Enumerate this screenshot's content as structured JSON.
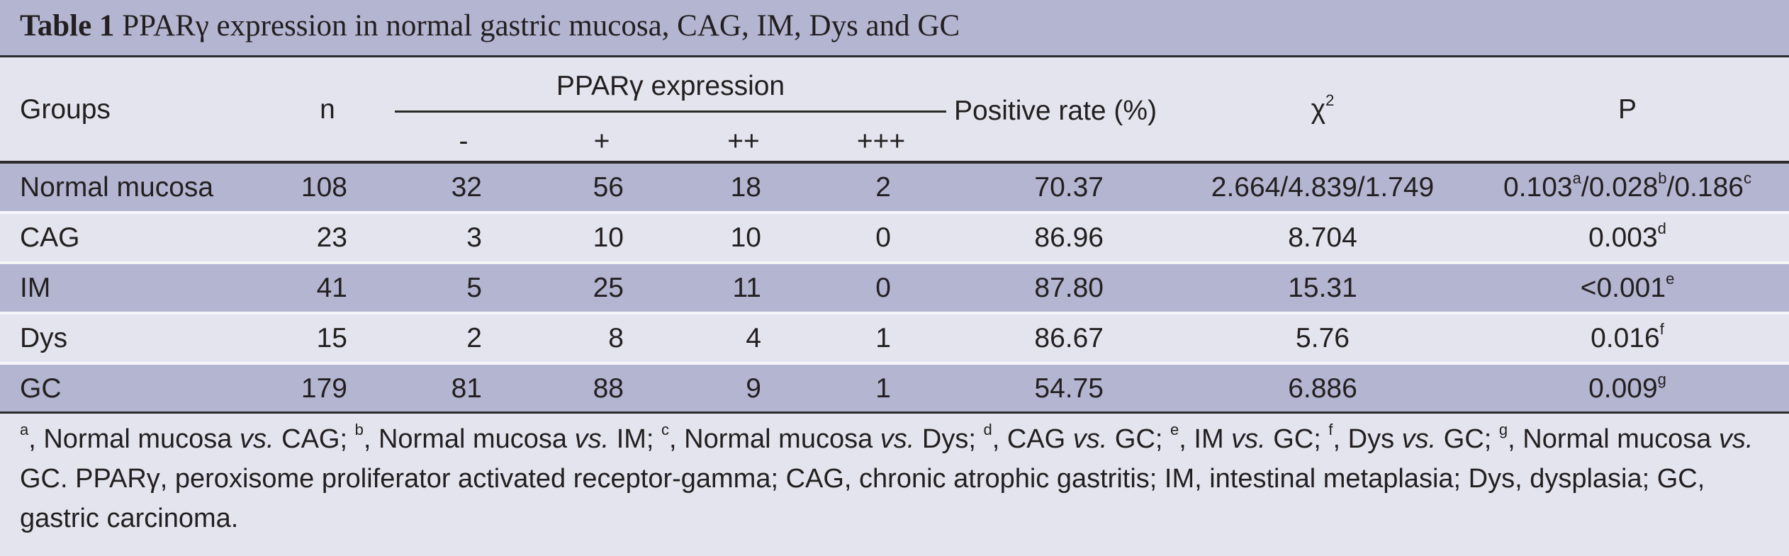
{
  "title": {
    "label": "Table 1",
    "text": "PPARγ expression in normal gastric mucosa, CAG, IM, Dys and GC"
  },
  "headers": {
    "groups": "Groups",
    "n": "n",
    "expression": "PPARγ expression",
    "sub": [
      "-",
      "+",
      "++",
      "+++"
    ],
    "positive_rate": "Positive rate (%)",
    "chi": "χ",
    "chi_sup": "2",
    "p": "P"
  },
  "rows": [
    {
      "group": "Normal mucosa",
      "n": "108",
      "neg": "32",
      "p1": "56",
      "p2": "18",
      "p3": "2",
      "rate": "70.37",
      "chi": "2.664/4.839/1.749",
      "p_parts": [
        {
          "v": "0.103",
          "s": "a"
        },
        {
          "v": "/0.028",
          "s": "b"
        },
        {
          "v": "/0.186",
          "s": "c"
        }
      ]
    },
    {
      "group": "CAG",
      "n": "23",
      "neg": "3",
      "p1": "10",
      "p2": "10",
      "p3": "0",
      "rate": "86.96",
      "chi": "8.704",
      "p_parts": [
        {
          "v": "0.003",
          "s": "d"
        }
      ]
    },
    {
      "group": "IM",
      "n": "41",
      "neg": "5",
      "p1": "25",
      "p2": "11",
      "p3": "0",
      "rate": "87.80",
      "chi": "15.31",
      "p_parts": [
        {
          "v": "<0.001",
          "s": "e"
        }
      ]
    },
    {
      "group": "Dys",
      "n": "15",
      "neg": "2",
      "p1": "8",
      "p2": "4",
      "p3": "1",
      "rate": "86.67",
      "chi": "5.76",
      "p_parts": [
        {
          "v": "0.016",
          "s": "f"
        }
      ]
    },
    {
      "group": "GC",
      "n": "179",
      "neg": "81",
      "p1": "88",
      "p2": "9",
      "p3": "1",
      "rate": "54.75",
      "chi": "6.886",
      "p_parts": [
        {
          "v": "0.009",
          "s": "g"
        }
      ]
    }
  ],
  "footnote": {
    "s_a": "a",
    "t_a": ", Normal mucosa ",
    "vs": "vs.",
    "t_a2": " CAG; ",
    "s_b": "b",
    "t_b": ", Normal mucosa ",
    "t_b2": " IM; ",
    "s_c": "c",
    "t_c": ", Normal mucosa ",
    "t_c2": " Dys; ",
    "s_d": "d",
    "t_d": ", CAG ",
    "t_d2": " GC; ",
    "s_e": "e",
    "t_e": ", IM ",
    "t_e2": " GC; ",
    "s_f": "f",
    "t_f": ", Dys ",
    "t_f2": " GC; ",
    "s_g": "g",
    "t_g": ", Normal mucosa ",
    "t_g2": " GC. PPARγ, peroxisome proliferator activated receptor-gamma; CAG, chronic atrophic gastritis; IM, intestinal metaplasia; Dys, dysplasia; GC, gastric carcinoma."
  }
}
